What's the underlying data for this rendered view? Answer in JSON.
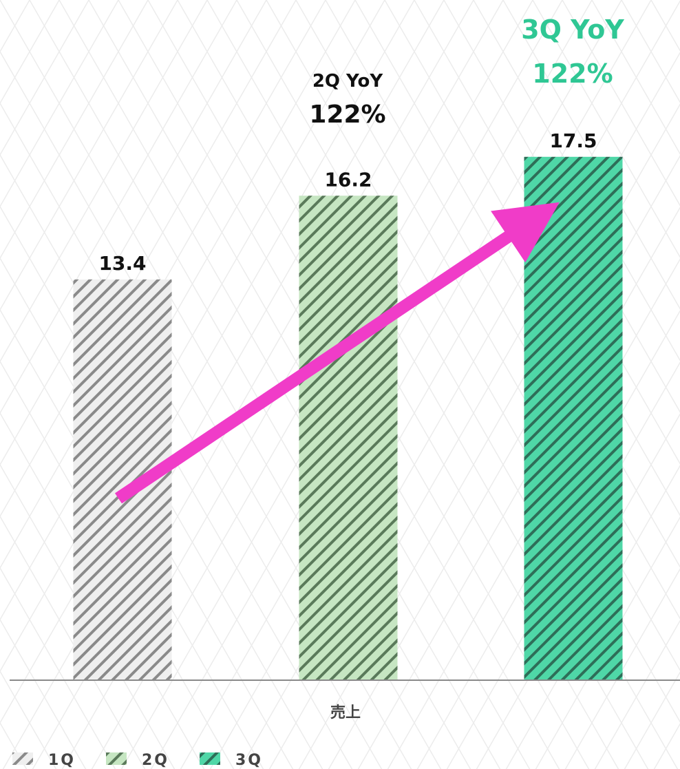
{
  "chart_data": {
    "type": "bar",
    "categories": [
      "売上"
    ],
    "series": [
      {
        "name": "1Q",
        "values": [
          13.4
        ],
        "color": "#efefef",
        "stripe": "#8a8a8a"
      },
      {
        "name": "2Q",
        "values": [
          16.2
        ],
        "color": "#c6e6c2",
        "stripe": "#5a7a5a"
      },
      {
        "name": "3Q",
        "values": [
          17.5
        ],
        "color": "#4fd7a7",
        "stripe": "#2e6e58"
      }
    ],
    "ylim": [
      0,
      18.6
    ],
    "grid": false,
    "legend": "bottom-left",
    "annotations": {
      "q2": {
        "line1": "2Q YoY",
        "line2": "122%"
      },
      "q3": {
        "line1": "3Q YoY",
        "line2": "122%",
        "color": "#2fc794"
      }
    },
    "trend_arrow": {
      "from_series": "1Q",
      "to_series": "3Q",
      "color": "#f03cc8"
    }
  }
}
